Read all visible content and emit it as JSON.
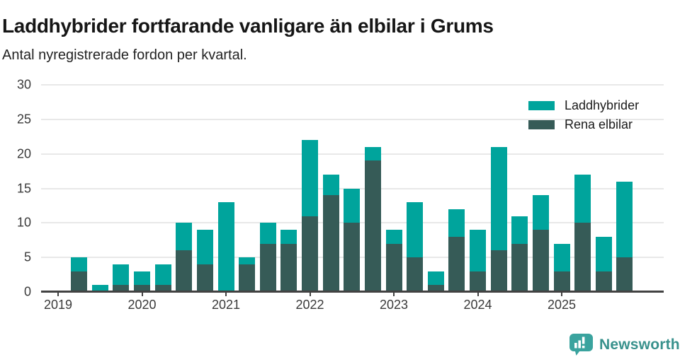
{
  "header": {
    "title": "Laddhybrider fortfarande vanligare än elbilar i Grums",
    "subtitle": "Antal nyregistrerade fordon per kvartal."
  },
  "legend": [
    {
      "label": "Laddhybrider",
      "color": "#00a49c"
    },
    {
      "label": "Rena elbilar",
      "color": "#365b57"
    }
  ],
  "footer": {
    "brand": "Newsworthy",
    "brand_color": "#38918c",
    "icon_color": "#3aa39e"
  },
  "chart_data": {
    "type": "bar",
    "stacked": true,
    "title": "Laddhybrider fortfarande vanligare än elbilar i Grums",
    "subtitle": "Antal nyregistrerade fordon per kvartal.",
    "xlabel": "",
    "ylabel": "",
    "ylim": [
      0,
      30
    ],
    "yticks": [
      0,
      5,
      10,
      15,
      20,
      25,
      30
    ],
    "grid": true,
    "legend_position": "top-right",
    "x_tick_labels": [
      "2019",
      "2020",
      "2021",
      "2022",
      "2023",
      "2024",
      "2025"
    ],
    "categories": [
      "2019 Q1",
      "2019 Q2",
      "2019 Q3",
      "2019 Q4",
      "2020 Q1",
      "2020 Q2",
      "2020 Q3",
      "2020 Q4",
      "2021 Q1",
      "2021 Q2",
      "2021 Q3",
      "2021 Q4",
      "2022 Q1",
      "2022 Q2",
      "2022 Q3",
      "2022 Q4",
      "2023 Q1",
      "2023 Q2",
      "2023 Q3",
      "2023 Q4",
      "2024 Q1",
      "2024 Q2",
      "2024 Q3",
      "2024 Q4",
      "2025 Q1",
      "2025 Q2",
      "2025 Q3",
      "2025 Q4"
    ],
    "series": [
      {
        "name": "Laddhybrider",
        "color": "#00a49c",
        "stack_position": "top",
        "values": [
          0,
          2,
          1,
          3,
          2,
          3,
          4,
          5,
          13,
          1,
          3,
          2,
          11,
          3,
          5,
          2,
          2,
          8,
          2,
          4,
          6,
          15,
          4,
          5,
          4,
          7,
          5,
          11
        ]
      },
      {
        "name": "Rena elbilar",
        "color": "#365b57",
        "stack_position": "bottom",
        "values": [
          0,
          3,
          0,
          1,
          1,
          1,
          6,
          4,
          0,
          4,
          7,
          7,
          11,
          14,
          10,
          19,
          7,
          5,
          1,
          8,
          3,
          6,
          7,
          9,
          3,
          10,
          3,
          5
        ]
      }
    ],
    "stacked_totals": [
      0,
      5,
      1,
      4,
      3,
      4,
      10,
      9,
      13,
      5,
      10,
      9,
      22,
      17,
      15,
      21,
      9,
      13,
      3,
      12,
      9,
      21,
      11,
      14,
      7,
      17,
      8,
      16
    ]
  }
}
